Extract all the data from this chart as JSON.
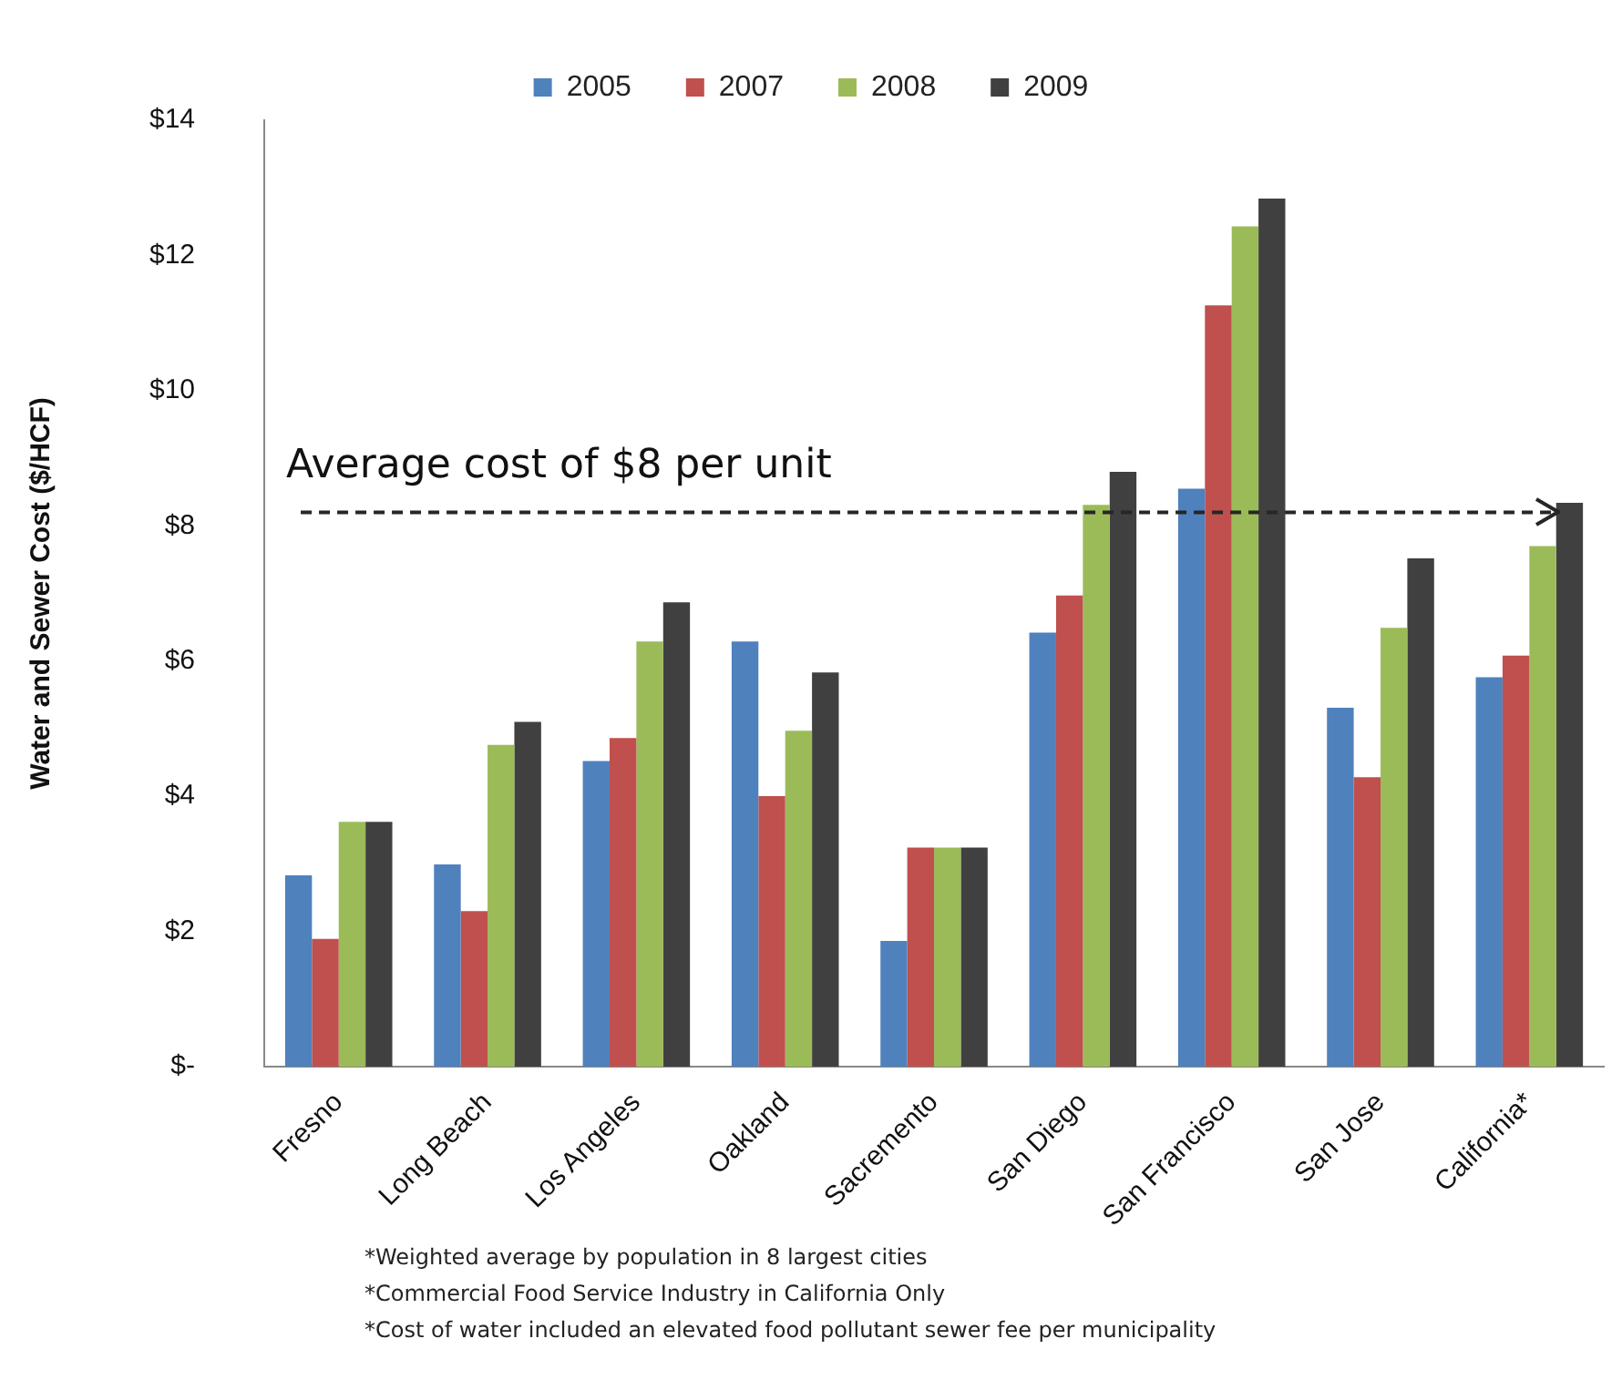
{
  "chart_data": {
    "type": "bar",
    "ylabel": "Water and Sewer Cost ($/HCF)",
    "categories": [
      "Fresno",
      "Long Beach",
      "Los Angeles",
      "Oakland",
      "Sacremento",
      "San Diego",
      "San Francisco",
      "San Jose",
      "California*"
    ],
    "series": [
      {
        "name": "2005",
        "color": "#4f81bd",
        "values": [
          2.83,
          2.99,
          4.52,
          6.29,
          1.86,
          6.42,
          8.55,
          5.31,
          5.76
        ]
      },
      {
        "name": "2007",
        "color": "#c0504d",
        "values": [
          1.89,
          2.3,
          4.86,
          4.0,
          3.24,
          6.97,
          11.26,
          4.28,
          6.08
        ]
      },
      {
        "name": "2008",
        "color": "#9bbb59",
        "values": [
          3.62,
          4.76,
          6.29,
          4.97,
          3.24,
          8.31,
          12.43,
          6.49,
          7.7
        ]
      },
      {
        "name": "2009",
        "color": "#404040",
        "values": [
          3.62,
          5.1,
          6.87,
          5.83,
          3.24,
          8.8,
          12.84,
          7.52,
          8.34
        ]
      }
    ],
    "ylim": [
      0,
      14
    ],
    "yticks": [
      {
        "value": 0,
        "label": "$-"
      },
      {
        "value": 2,
        "label": "$2"
      },
      {
        "value": 4,
        "label": "$4"
      },
      {
        "value": 6,
        "label": "$6"
      },
      {
        "value": 8,
        "label": "$8"
      },
      {
        "value": 10,
        "label": "$10"
      },
      {
        "value": 12,
        "label": "$12"
      },
      {
        "value": 14,
        "label": "$14"
      }
    ],
    "grid": false,
    "legend": "top",
    "ref_lines": [
      {
        "axis": "y",
        "value": 8.2,
        "label": "Average cost of $8 per unit",
        "color": "#262626",
        "line_style": "dashed"
      }
    ],
    "annotations": [
      "*Weighted average by population in 8 largest cities",
      "*Commercial Food Service Industry in California Only",
      "*Cost of water included an elevated food pollutant sewer fee per municipality"
    ]
  }
}
